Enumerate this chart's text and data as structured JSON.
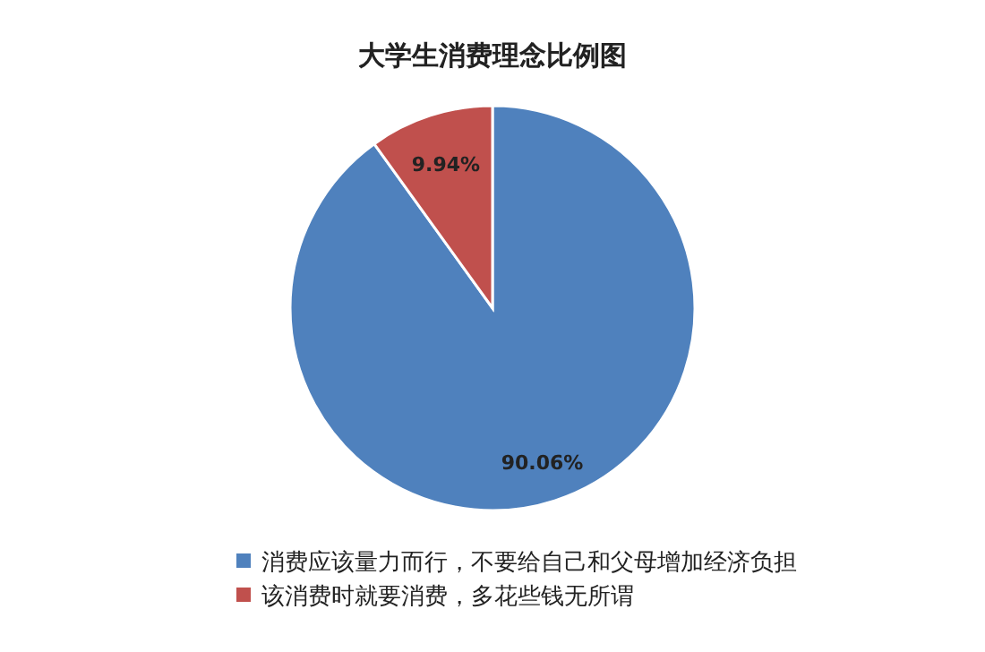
{
  "chart_data": {
    "type": "pie",
    "title": "大学生消费理念比例图",
    "categories": [
      "消费应该量力而行，不要给自己和父母增加经济负担",
      "该消费时就要消费，多花些钱无所谓"
    ],
    "values": [
      90.06,
      9.94
    ],
    "colors": [
      "#4f81bd",
      "#c0504d"
    ],
    "value_labels": [
      "90.06%",
      "9.94%"
    ],
    "legend": "bottom"
  }
}
